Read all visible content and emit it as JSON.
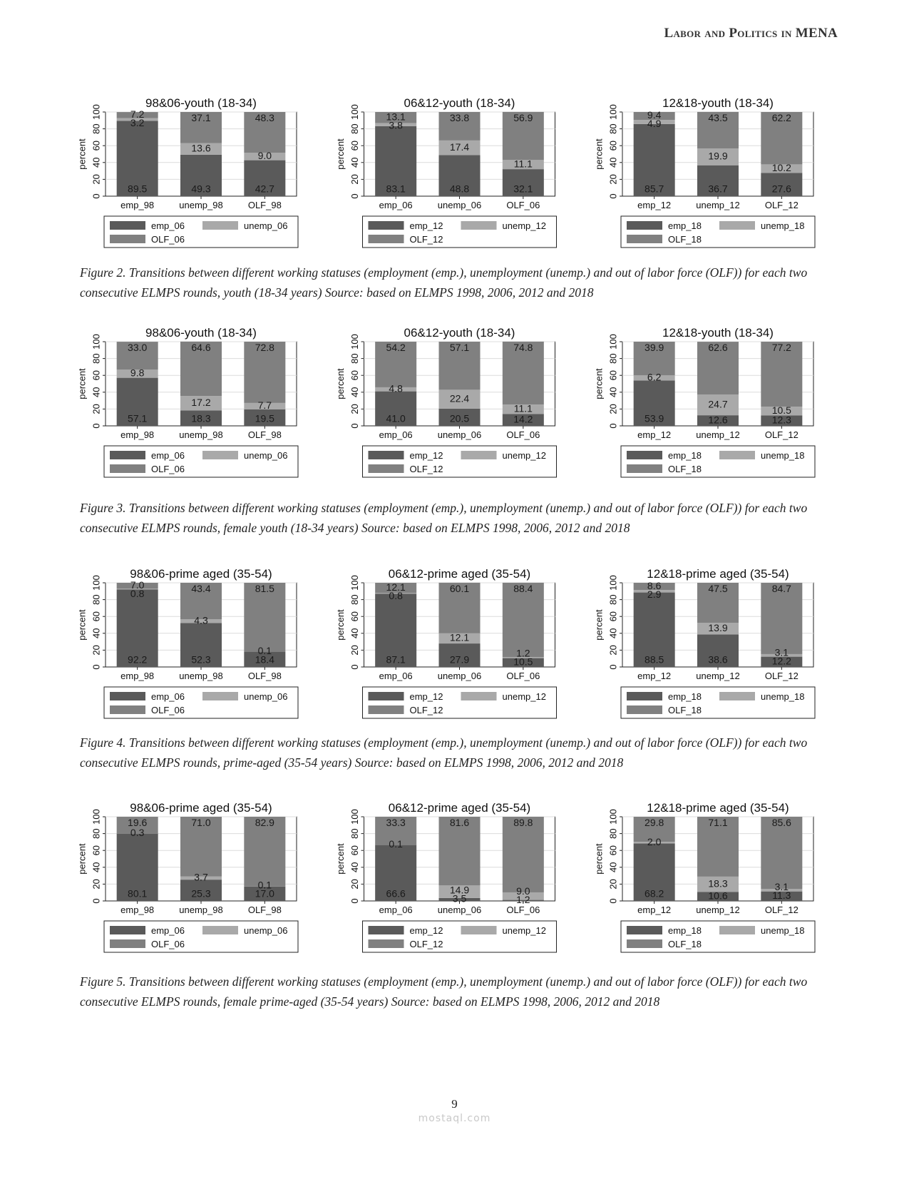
{
  "header": {
    "running_head": "Labor and Politics in MENA"
  },
  "page": {
    "number": "9",
    "watermark": "mostaql.com"
  },
  "colors": {
    "emp": "#5a5a5a",
    "unemp": "#a9a9a9",
    "olf": "#808080",
    "grid": "#dcdcdc"
  },
  "figures": [
    {
      "caption": "Figure 2. Transitions between different working statuses (employment (emp.), unemployment (unemp.) and out of labor force (OLF)) for each two consecutive ELMPS rounds, youth (18-34 years) Source: based on ELMPS 1998, 2006, 2012 and 2018",
      "chart_data": [
        {
          "type": "bar",
          "title": "98&06-youth (18-34)",
          "ylabel": "percent",
          "ylim": [
            0,
            100
          ],
          "yticks": [
            0,
            20,
            40,
            60,
            80,
            100
          ],
          "grid": true,
          "legend_position": "bottom",
          "categories": [
            "emp_98",
            "unemp_98",
            "OLF_98"
          ],
          "series": [
            {
              "name": "emp_06",
              "values": [
                89.5,
                49.3,
                42.7
              ]
            },
            {
              "name": "unemp_06",
              "values": [
                3.2,
                13.6,
                9.0
              ]
            },
            {
              "name": "OLF_06",
              "values": [
                7.2,
                37.1,
                48.3
              ]
            }
          ]
        },
        {
          "type": "bar",
          "title": "06&12-youth (18-34)",
          "ylabel": "percent",
          "ylim": [
            0,
            100
          ],
          "yticks": [
            0,
            20,
            40,
            60,
            80,
            100
          ],
          "grid": true,
          "legend_position": "bottom",
          "categories": [
            "emp_06",
            "unemp_06",
            "OLF_06"
          ],
          "series": [
            {
              "name": "emp_12",
              "values": [
                83.1,
                48.8,
                32.1
              ]
            },
            {
              "name": "unemp_12",
              "values": [
                3.8,
                17.4,
                11.1
              ]
            },
            {
              "name": "OLF_12",
              "values": [
                13.1,
                33.8,
                56.9
              ]
            }
          ]
        },
        {
          "type": "bar",
          "title": "12&18-youth (18-34)",
          "ylabel": "percent",
          "ylim": [
            0,
            100
          ],
          "yticks": [
            0,
            20,
            40,
            60,
            80,
            100
          ],
          "grid": true,
          "legend_position": "bottom",
          "categories": [
            "emp_12",
            "unemp_12",
            "OLF_12"
          ],
          "series": [
            {
              "name": "emp_18",
              "values": [
                85.7,
                36.7,
                27.6
              ]
            },
            {
              "name": "unemp_18",
              "values": [
                4.9,
                19.9,
                10.2
              ]
            },
            {
              "name": "OLF_18",
              "values": [
                9.4,
                43.5,
                62.2
              ]
            }
          ]
        }
      ]
    },
    {
      "caption": "Figure 3. Transitions between different working statuses (employment (emp.), unemployment (unemp.) and out of labor force (OLF)) for each two consecutive ELMPS rounds, female youth (18-34 years) Source: based on ELMPS 1998, 2006, 2012 and 2018",
      "chart_data": [
        {
          "type": "bar",
          "title": "98&06-youth (18-34)",
          "ylabel": "percent",
          "ylim": [
            0,
            100
          ],
          "yticks": [
            0,
            20,
            40,
            60,
            80,
            100
          ],
          "grid": true,
          "legend_position": "bottom",
          "categories": [
            "emp_98",
            "unemp_98",
            "OLF_98"
          ],
          "series": [
            {
              "name": "emp_06",
              "values": [
                57.1,
                18.3,
                19.5
              ]
            },
            {
              "name": "unemp_06",
              "values": [
                9.8,
                17.2,
                7.7
              ]
            },
            {
              "name": "OLF_06",
              "values": [
                33.0,
                64.6,
                72.8
              ]
            }
          ]
        },
        {
          "type": "bar",
          "title": "06&12-youth (18-34)",
          "ylabel": "percent",
          "ylim": [
            0,
            100
          ],
          "yticks": [
            0,
            20,
            40,
            60,
            80,
            100
          ],
          "grid": true,
          "legend_position": "bottom",
          "categories": [
            "emp_06",
            "unemp_06",
            "OLF_06"
          ],
          "series": [
            {
              "name": "emp_12",
              "values": [
                41.0,
                20.5,
                14.2
              ]
            },
            {
              "name": "unemp_12",
              "values": [
                4.8,
                22.4,
                11.1
              ]
            },
            {
              "name": "OLF_12",
              "values": [
                54.2,
                57.1,
                74.8
              ]
            }
          ]
        },
        {
          "type": "bar",
          "title": "12&18-youth (18-34)",
          "ylabel": "percent",
          "ylim": [
            0,
            100
          ],
          "yticks": [
            0,
            20,
            40,
            60,
            80,
            100
          ],
          "grid": true,
          "legend_position": "bottom",
          "categories": [
            "emp_12",
            "unemp_12",
            "OLF_12"
          ],
          "series": [
            {
              "name": "emp_18",
              "values": [
                53.9,
                12.6,
                12.3
              ]
            },
            {
              "name": "unemp_18",
              "values": [
                6.2,
                24.7,
                10.5
              ]
            },
            {
              "name": "OLF_18",
              "values": [
                39.9,
                62.6,
                77.2
              ]
            }
          ]
        }
      ]
    },
    {
      "caption": "Figure 4. Transitions between different working statuses (employment (emp.), unemployment (unemp.) and out of labor force (OLF)) for each two consecutive ELMPS rounds, prime-aged (35-54 years) Source: based on ELMPS 1998, 2006, 2012 and 2018",
      "chart_data": [
        {
          "type": "bar",
          "title": "98&06-prime aged (35-54)",
          "ylabel": "percent",
          "ylim": [
            0,
            100
          ],
          "yticks": [
            0,
            20,
            40,
            60,
            80,
            100
          ],
          "grid": true,
          "legend_position": "bottom",
          "categories": [
            "emp_98",
            "unemp_98",
            "OLF_98"
          ],
          "series": [
            {
              "name": "emp_06",
              "values": [
                92.2,
                52.3,
                18.4
              ]
            },
            {
              "name": "unemp_06",
              "values": [
                0.8,
                4.3,
                0.1
              ]
            },
            {
              "name": "OLF_06",
              "values": [
                7.0,
                43.4,
                81.5
              ]
            }
          ]
        },
        {
          "type": "bar",
          "title": "06&12-prime aged (35-54)",
          "ylabel": "percent",
          "ylim": [
            0,
            100
          ],
          "yticks": [
            0,
            20,
            40,
            60,
            80,
            100
          ],
          "grid": true,
          "legend_position": "bottom",
          "categories": [
            "emp_06",
            "unemp_06",
            "OLF_06"
          ],
          "series": [
            {
              "name": "emp_12",
              "values": [
                87.1,
                27.9,
                10.5
              ]
            },
            {
              "name": "unemp_12",
              "values": [
                0.8,
                12.1,
                1.2
              ]
            },
            {
              "name": "OLF_12",
              "values": [
                12.1,
                60.1,
                88.4
              ]
            }
          ]
        },
        {
          "type": "bar",
          "title": "12&18-prime aged (35-54)",
          "ylabel": "percent",
          "ylim": [
            0,
            100
          ],
          "yticks": [
            0,
            20,
            40,
            60,
            80,
            100
          ],
          "grid": true,
          "legend_position": "bottom",
          "categories": [
            "emp_12",
            "unemp_12",
            "OLF_12"
          ],
          "series": [
            {
              "name": "emp_18",
              "values": [
                88.5,
                38.6,
                12.2
              ]
            },
            {
              "name": "unemp_18",
              "values": [
                2.9,
                13.9,
                3.1
              ]
            },
            {
              "name": "OLF_18",
              "values": [
                8.6,
                47.5,
                84.7
              ]
            }
          ]
        }
      ]
    },
    {
      "caption": "Figure 5. Transitions between different working statuses (employment (emp.), unemployment (unemp.) and out of labor force (OLF)) for each two consecutive ELMPS rounds, female prime-aged (35-54 years) Source: based on ELMPS 1998, 2006, 2012 and 2018",
      "chart_data": [
        {
          "type": "bar",
          "title": "98&06-prime aged (35-54)",
          "ylabel": "percent",
          "ylim": [
            0,
            100
          ],
          "yticks": [
            0,
            20,
            40,
            60,
            80,
            100
          ],
          "grid": true,
          "legend_position": "bottom",
          "categories": [
            "emp_98",
            "unemp_98",
            "OLF_98"
          ],
          "series": [
            {
              "name": "emp_06",
              "values": [
                80.1,
                25.3,
                17.0
              ]
            },
            {
              "name": "unemp_06",
              "values": [
                0.3,
                3.7,
                0.1
              ]
            },
            {
              "name": "OLF_06",
              "values": [
                19.6,
                71.0,
                82.9
              ]
            }
          ]
        },
        {
          "type": "bar",
          "title": "06&12-prime aged (35-54)",
          "ylabel": "percent",
          "ylim": [
            0,
            100
          ],
          "yticks": [
            0,
            20,
            40,
            60,
            80,
            100
          ],
          "grid": true,
          "legend_position": "bottom",
          "categories": [
            "emp_06",
            "unemp_06",
            "OLF_06"
          ],
          "series": [
            {
              "name": "emp_12",
              "values": [
                66.6,
                3.5,
                1.2
              ]
            },
            {
              "name": "unemp_12",
              "values": [
                0.1,
                14.9,
                9.0
              ]
            },
            {
              "name": "OLF_12",
              "values": [
                33.3,
                81.6,
                89.8
              ]
            }
          ]
        },
        {
          "type": "bar",
          "title": "12&18-prime aged (35-54)",
          "ylabel": "percent",
          "ylim": [
            0,
            100
          ],
          "yticks": [
            0,
            20,
            40,
            60,
            80,
            100
          ],
          "grid": true,
          "legend_position": "bottom",
          "categories": [
            "emp_12",
            "unemp_12",
            "OLF_12"
          ],
          "series": [
            {
              "name": "emp_18",
              "values": [
                68.2,
                10.6,
                11.3
              ]
            },
            {
              "name": "unemp_18",
              "values": [
                2.0,
                18.3,
                3.1
              ]
            },
            {
              "name": "OLF_18",
              "values": [
                29.8,
                71.1,
                85.6
              ]
            }
          ]
        }
      ]
    }
  ]
}
